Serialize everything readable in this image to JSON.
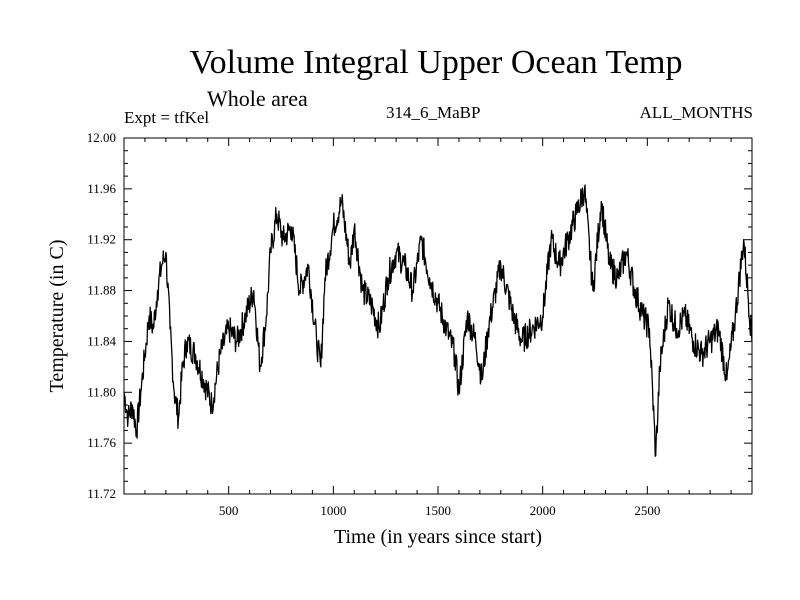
{
  "header": {
    "title": "Volume Integral Upper Ocean Temp",
    "subtitle": "Whole area",
    "expt": "Expt = tfKel",
    "run_id": "314_6_MaBP",
    "months": "ALL_MONTHS"
  },
  "chart_data": {
    "type": "line",
    "title": "Volume Integral Upper Ocean Temp",
    "subtitle": "Whole area",
    "xlabel": "Time (in years since start)",
    "ylabel": "Temperature (in C)",
    "xlim": [
      0,
      3000
    ],
    "ylim": [
      11.72,
      12.0
    ],
    "x_ticks": [
      500,
      1000,
      1500,
      2000,
      2500
    ],
    "y_ticks": [
      11.72,
      11.76,
      11.8,
      11.84,
      11.88,
      11.92,
      11.96,
      12.0
    ],
    "y_tick_labels": [
      "11.72",
      "11.76",
      "11.80",
      "11.84",
      "11.88",
      "11.92",
      "11.96",
      "12.00"
    ],
    "grid": false,
    "line_color": "#000000",
    "series": [
      {
        "x": [
          0,
          20,
          40,
          60,
          80,
          100,
          120,
          140,
          160,
          180,
          200,
          220,
          240,
          260,
          280,
          300,
          340,
          380,
          420,
          460,
          500,
          540,
          580,
          620,
          650,
          680,
          700,
          730,
          760,
          800,
          840,
          880,
          920,
          940,
          960,
          1000,
          1040,
          1080,
          1100,
          1140,
          1180,
          1220,
          1260,
          1300,
          1340,
          1380,
          1420,
          1460,
          1500,
          1540,
          1580,
          1600,
          1640,
          1680,
          1710,
          1740,
          1800,
          1860,
          1900,
          1950,
          2000,
          2040,
          2080,
          2120,
          2160,
          2200,
          2240,
          2280,
          2320,
          2360,
          2400,
          2440,
          2480,
          2510,
          2540,
          2560,
          2600,
          2640,
          2680,
          2720,
          2760,
          2800,
          2840,
          2880,
          2920,
          2960,
          3000
        ],
        "y": [
          11.8,
          11.78,
          11.79,
          11.77,
          11.8,
          11.83,
          11.86,
          11.85,
          11.88,
          11.9,
          11.91,
          11.85,
          11.8,
          11.78,
          11.82,
          11.84,
          11.83,
          11.81,
          11.79,
          11.83,
          11.85,
          11.84,
          11.86,
          11.88,
          11.82,
          11.86,
          11.91,
          11.94,
          11.92,
          11.93,
          11.88,
          11.9,
          11.84,
          11.82,
          11.89,
          11.93,
          11.95,
          11.9,
          11.93,
          11.88,
          11.87,
          11.85,
          11.89,
          11.91,
          11.9,
          11.88,
          11.92,
          11.89,
          11.87,
          11.85,
          11.83,
          11.8,
          11.86,
          11.84,
          11.81,
          11.85,
          11.9,
          11.86,
          11.84,
          11.85,
          11.86,
          11.92,
          11.9,
          11.92,
          11.94,
          11.96,
          11.88,
          11.95,
          11.9,
          11.89,
          11.91,
          11.88,
          11.86,
          11.85,
          11.75,
          11.82,
          11.87,
          11.85,
          11.86,
          11.84,
          11.83,
          11.84,
          11.85,
          11.81,
          11.86,
          11.92,
          11.84
        ]
      }
    ]
  },
  "colors": {
    "background": "#ffffff",
    "axes": "#000000",
    "line": "#000000"
  }
}
